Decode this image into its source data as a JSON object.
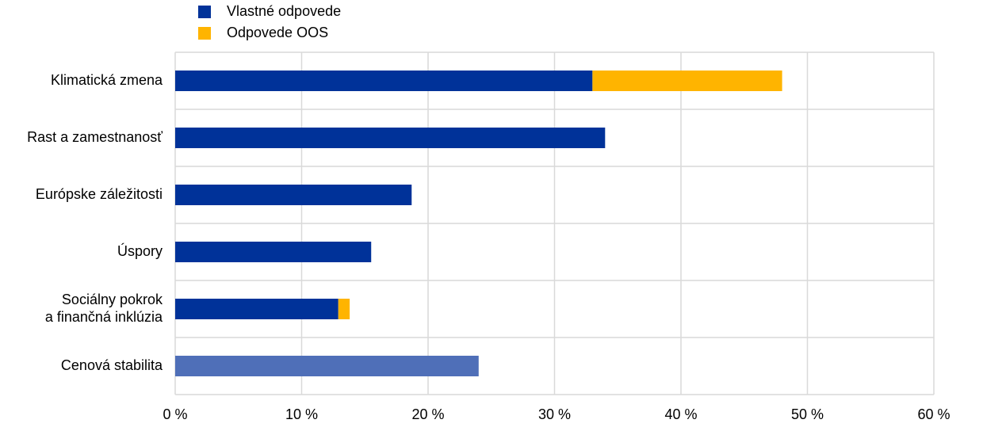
{
  "chart_data": {
    "type": "bar",
    "orientation": "horizontal",
    "stacked": true,
    "categories": [
      "Klimatická zmena",
      "Rast a zamestnanosť",
      "Európske záležitosti",
      "Úspory",
      "Sociálny pokrok\na finančná inklúzia",
      "Cenová stabilita"
    ],
    "series": [
      {
        "name": "Vlastné odpovede",
        "color": "#003299",
        "colors": [
          "#003299",
          "#003299",
          "#003299",
          "#003299",
          "#003299",
          "#4f6fb8"
        ],
        "values": [
          33,
          34,
          18.7,
          15.5,
          12.9,
          24
        ]
      },
      {
        "name": "Odpovede OOS",
        "color": "#ffb400",
        "values": [
          15,
          null,
          null,
          null,
          0.9,
          null
        ]
      }
    ],
    "xlim": [
      0,
      60
    ],
    "xticks": [
      {
        "value": 0,
        "label": "0 %"
      },
      {
        "value": 10,
        "label": "10 %"
      },
      {
        "value": 20,
        "label": "20 %"
      },
      {
        "value": 30,
        "label": "30 %"
      },
      {
        "value": 40,
        "label": "40 %"
      },
      {
        "value": 50,
        "label": "50 %"
      },
      {
        "value": 60,
        "label": "60 %"
      }
    ],
    "grid": true
  }
}
